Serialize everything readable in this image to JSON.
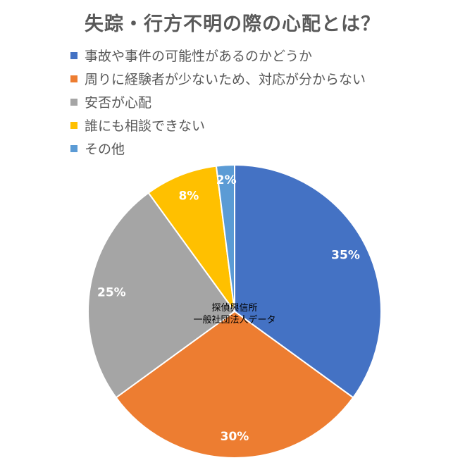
{
  "chart_data": {
    "type": "pie",
    "title": "失踪・行方不明の際の心配とは？",
    "categories": [
      "事故や事件の可能性があるのかどうか",
      "周りに経験者が少ないため、対応が分からない",
      "安否が心配",
      "誰にも相談できない",
      "その他"
    ],
    "values": [
      35,
      30,
      25,
      8,
      2
    ],
    "data_labels": [
      "35%",
      "30%",
      "25%",
      "8%",
      "2%"
    ],
    "colors": [
      "#4472C4",
      "#ED7D31",
      "#A5A5A5",
      "#FFC000",
      "#5B9BD5"
    ],
    "legend_position": "top",
    "annotation": [
      "探偵興信所",
      "一般社団法人データ"
    ]
  }
}
